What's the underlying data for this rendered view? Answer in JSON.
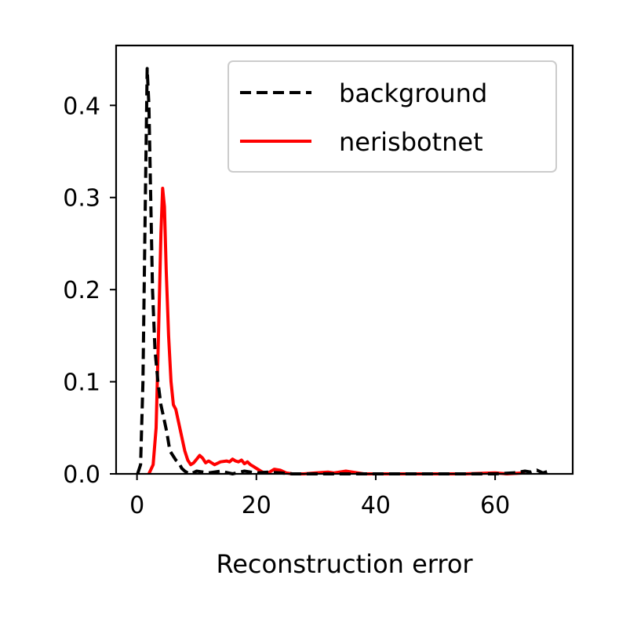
{
  "chart_data": {
    "type": "line",
    "xlabel": "Reconstruction error",
    "ylabel": "",
    "xlim": [
      -3.5,
      73
    ],
    "ylim": [
      0,
      0.465
    ],
    "xticks": [
      0,
      20,
      40,
      60
    ],
    "xtick_labels": [
      "0",
      "20",
      "40",
      "60"
    ],
    "yticks": [
      0.0,
      0.1,
      0.2,
      0.3,
      0.4
    ],
    "ytick_labels": [
      "0.0",
      "0.1",
      "0.2",
      "0.3",
      "0.4"
    ],
    "legend_position": "top-right",
    "grid": false,
    "series": [
      {
        "name": "background",
        "color": "#000000",
        "style": "dashed",
        "x": [
          0.1,
          0.6,
          1.0,
          1.4,
          1.7,
          2.0,
          2.3,
          2.6,
          3.0,
          3.5,
          4.0,
          4.5,
          5.0,
          5.5,
          6.0,
          6.5,
          7.0,
          7.5,
          8.0,
          8.5,
          9.0,
          10,
          12,
          14,
          16,
          18,
          20,
          22,
          24,
          26,
          28,
          30,
          35,
          40,
          45,
          50,
          55,
          60,
          63,
          65,
          66,
          67,
          68,
          69
        ],
        "y": [
          0.0,
          0.01,
          0.1,
          0.3,
          0.44,
          0.4,
          0.3,
          0.2,
          0.135,
          0.1,
          0.075,
          0.06,
          0.045,
          0.025,
          0.02,
          0.015,
          0.012,
          0.006,
          0.003,
          0.001,
          0.0,
          0.003,
          0.001,
          0.003,
          0.0,
          0.003,
          0.001,
          0.002,
          0.001,
          0.0,
          0.0,
          0.0,
          0.0,
          0.0,
          0.0,
          0.0,
          0.0,
          0.0,
          0.001,
          0.003,
          0.002,
          0.004,
          0.001,
          0.003
        ]
      },
      {
        "name": "nerisbotnet",
        "color": "#ff0000",
        "style": "solid",
        "x": [
          2.0,
          2.7,
          3.2,
          3.6,
          4.0,
          4.3,
          4.6,
          4.9,
          5.3,
          5.7,
          6.1,
          6.5,
          7.0,
          7.5,
          8.0,
          8.5,
          9.0,
          9.5,
          10.0,
          10.5,
          11.0,
          11.5,
          12.0,
          12.5,
          13.0,
          14.0,
          15.0,
          15.5,
          16.0,
          16.5,
          17.0,
          17.5,
          18.0,
          18.5,
          19.0,
          19.5,
          20.0,
          21.0,
          22.0,
          23.0,
          24.0,
          25.0,
          26.0,
          28.0,
          30.0,
          32.0,
          33.0,
          35.0,
          38.0,
          45.0,
          55.0,
          60.0,
          62.0,
          65.0
        ],
        "y": [
          0.0,
          0.01,
          0.05,
          0.15,
          0.26,
          0.31,
          0.29,
          0.22,
          0.15,
          0.1,
          0.075,
          0.07,
          0.055,
          0.04,
          0.025,
          0.015,
          0.01,
          0.012,
          0.016,
          0.02,
          0.017,
          0.012,
          0.014,
          0.012,
          0.01,
          0.013,
          0.014,
          0.013,
          0.016,
          0.014,
          0.013,
          0.015,
          0.011,
          0.013,
          0.01,
          0.008,
          0.006,
          0.002,
          0.001,
          0.005,
          0.004,
          0.001,
          0.0,
          0.0,
          0.001,
          0.002,
          0.001,
          0.003,
          0.0,
          0.0,
          0.0,
          0.001,
          0.0,
          0.001
        ]
      }
    ]
  }
}
